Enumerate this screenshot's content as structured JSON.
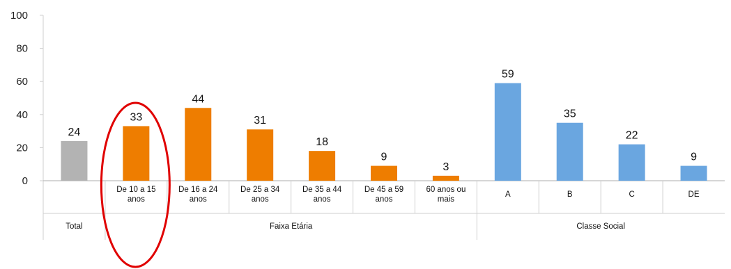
{
  "chart_data": {
    "type": "bar",
    "ylim": [
      0,
      100
    ],
    "yticks": [
      "100",
      "80",
      "60",
      "40",
      "20",
      "0"
    ],
    "grid": false,
    "categories": [
      [
        "Total"
      ],
      [
        "De 10 a 15",
        "anos"
      ],
      [
        "De 16 a 24",
        "anos"
      ],
      [
        "De 25 a 34",
        "anos"
      ],
      [
        "De 35 a 44",
        "anos"
      ],
      [
        "De 45 a 59",
        "anos"
      ],
      [
        "60 anos ou",
        "mais"
      ],
      [
        "A"
      ],
      [
        "B"
      ],
      [
        "C"
      ],
      [
        "DE"
      ]
    ],
    "values": [
      24,
      33,
      44,
      31,
      18,
      9,
      3,
      59,
      35,
      22,
      9
    ],
    "groups": [
      {
        "label": "",
        "members": [
          0
        ]
      },
      {
        "label": "Faixa Etária",
        "members": [
          1,
          2,
          3,
          4,
          5,
          6
        ]
      },
      {
        "label": "Classe Social",
        "members": [
          7,
          8,
          9,
          10
        ]
      }
    ],
    "bottom_labels": {
      "total": "Total"
    },
    "colors": {
      "total": "#b3b3b3",
      "faixa_etaria": "#ee7d00",
      "classe_social": "#6aa6e0",
      "highlight_ellipse": "#e00000"
    },
    "bar_color_keys": [
      "total",
      "faixa_etaria",
      "faixa_etaria",
      "faixa_etaria",
      "faixa_etaria",
      "faixa_etaria",
      "faixa_etaria",
      "classe_social",
      "classe_social",
      "classe_social",
      "classe_social"
    ],
    "highlighted_category": 1
  }
}
